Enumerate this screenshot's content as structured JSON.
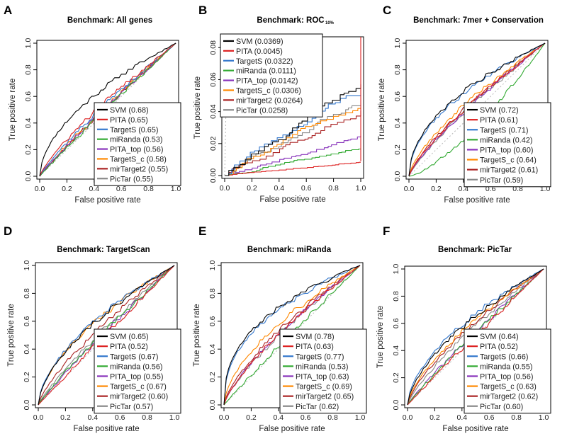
{
  "chart_data": [
    {
      "letter": "A",
      "type": "line",
      "title": "Benchmark: All genes",
      "xlabel": "False positive rate",
      "ylabel": "True positive rate",
      "xlim": [
        0,
        1
      ],
      "ylim": [
        0,
        1
      ],
      "xticks": [
        "0.0",
        "0.2",
        "0.4",
        "0.6",
        "0.8",
        "1.0"
      ],
      "yticks": [
        "0.0",
        "0.2",
        "0.4",
        "0.6",
        "0.8",
        "1.0"
      ],
      "series": [
        {
          "name": "SVM",
          "label": "SVM (0.68)",
          "color": "#000000",
          "shape": 0.55,
          "steps": false
        },
        {
          "name": "PITA",
          "label": "PITA (0.65)",
          "color": "#dd2222",
          "shape": 0.8,
          "steps": false
        },
        {
          "name": "TargetS",
          "label": "TargetS (0.65)",
          "color": "#3377cc",
          "shape": 0.85,
          "steps": false
        },
        {
          "name": "miRanda",
          "label": "miRanda (0.53)",
          "color": "#33aa33",
          "shape": 0.96,
          "steps": false
        },
        {
          "name": "PITA_top",
          "label": "PITA_top (0.56)",
          "color": "#8833bb",
          "shape": 0.92,
          "steps": false
        },
        {
          "name": "TargetS_c",
          "label": "TargetS_c (0.58)",
          "color": "#ff8800",
          "shape": 0.9,
          "steps": false
        },
        {
          "name": "mirTarget2",
          "label": "mirTarget2 (0.55)",
          "color": "#aa2222",
          "shape": 0.93,
          "steps": false
        },
        {
          "name": "PicTar",
          "label": "PicTar (0.55)",
          "color": "#888888",
          "shape": 0.94,
          "steps": false
        }
      ]
    },
    {
      "letter": "B",
      "type": "line",
      "title": "Benchmark: ROC",
      "title_sub": "10%",
      "xlabel": "False positive rate",
      "ylabel": "True positive rate",
      "xlim": [
        0,
        1
      ],
      "ylim": [
        0,
        0.085
      ],
      "xticks": [
        "0.0",
        "0.2",
        "0.4",
        "0.6",
        "0.8",
        "1.0"
      ],
      "yticks": [
        "0.00",
        "0.02",
        "0.04",
        "0.06",
        "0.08"
      ],
      "series": [
        {
          "name": "SVM",
          "label": "SVM (0.0369)",
          "color": "#000000",
          "end": 0.057,
          "steps": true
        },
        {
          "name": "PITA",
          "label": "PITA (0.0045)",
          "color": "#dd2222",
          "end": 0.009,
          "steps": true
        },
        {
          "name": "TargetS",
          "label": "TargetS (0.0322)",
          "color": "#3377cc",
          "end": 0.05,
          "steps": true
        },
        {
          "name": "miRanda",
          "label": "miRanda (0.0111)",
          "color": "#33aa33",
          "end": 0.017,
          "steps": true
        },
        {
          "name": "PITA_top",
          "label": "PITA_top (0.0142)",
          "color": "#8833bb",
          "end": 0.026,
          "steps": true
        },
        {
          "name": "TargetS_c",
          "label": "TargetS_c (0.0306)",
          "color": "#ff8800",
          "end": 0.047,
          "steps": true
        },
        {
          "name": "mirTarget2",
          "label": "mirTarget2 (0.0264)",
          "color": "#aa2222",
          "end": 0.042,
          "steps": true
        },
        {
          "name": "PicTar",
          "label": "PicTar (0.0258)",
          "color": "#888888",
          "end": 0.044,
          "steps": true
        }
      ]
    },
    {
      "letter": "C",
      "type": "line",
      "title": "Benchmark:  7mer + Conservation",
      "xlabel": "False positive rate",
      "ylabel": "True positive rate",
      "xlim": [
        0,
        1
      ],
      "ylim": [
        0,
        1
      ],
      "xticks": [
        "0.0",
        "0.2",
        "0.4",
        "0.6",
        "0.8",
        "1.0"
      ],
      "yticks": [
        "0.0",
        "0.2",
        "0.4",
        "0.6",
        "0.8",
        "1.0"
      ],
      "series": [
        {
          "name": "SVM",
          "label": "SVM (0.72)",
          "color": "#000000",
          "shape": 0.5,
          "steps": false
        },
        {
          "name": "PITA",
          "label": "PITA (0.61)",
          "color": "#dd2222",
          "shape": 0.78,
          "steps": false
        },
        {
          "name": "TargetS",
          "label": "TargetS (0.71)",
          "color": "#3377cc",
          "shape": 0.52,
          "steps": false
        },
        {
          "name": "miRanda",
          "label": "miRanda (0.42)",
          "color": "#33aa33",
          "shape": 1.4,
          "steps": false
        },
        {
          "name": "PITA_top",
          "label": "PITA_top (0.60)",
          "color": "#8833bb",
          "shape": 0.8,
          "steps": false
        },
        {
          "name": "TargetS_c",
          "label": "TargetS_c (0.64)",
          "color": "#ff8800",
          "shape": 0.7,
          "steps": false
        },
        {
          "name": "mirTarget2",
          "label": "mirTarget2 (0.61)",
          "color": "#aa2222",
          "shape": 0.76,
          "steps": false
        },
        {
          "name": "PicTar",
          "label": "PicTar (0.59)",
          "color": "#888888",
          "shape": 0.82,
          "steps": false
        }
      ]
    },
    {
      "letter": "D",
      "type": "line",
      "title": "Benchmark: TargetScan",
      "xlabel": "False positive rate",
      "ylabel": "True positive rate",
      "xlim": [
        0,
        1
      ],
      "ylim": [
        0,
        1
      ],
      "xticks": [
        "0.0",
        "0.2",
        "0.4",
        "0.6",
        "0.8",
        "1.0"
      ],
      "yticks": [
        "0.0",
        "0.2",
        "0.4",
        "0.6",
        "0.8",
        "1.0"
      ],
      "series": [
        {
          "name": "SVM",
          "label": "SVM (0.65)",
          "color": "#000000",
          "shape": 0.6,
          "steps": false
        },
        {
          "name": "PITA",
          "label": "PITA (0.52)",
          "color": "#dd2222",
          "shape": 0.98,
          "steps": false
        },
        {
          "name": "TargetS",
          "label": "TargetS (0.67)",
          "color": "#3377cc",
          "shape": 0.58,
          "steps": false
        },
        {
          "name": "miRanda",
          "label": "miRanda (0.56)",
          "color": "#33aa33",
          "shape": 0.9,
          "steps": false
        },
        {
          "name": "PITA_top",
          "label": "PITA_top (0.55)",
          "color": "#8833bb",
          "shape": 0.92,
          "steps": false
        },
        {
          "name": "TargetS_c",
          "label": "TargetS_c (0.67)",
          "color": "#ff8800",
          "shape": 0.6,
          "steps": false
        },
        {
          "name": "mirTarget2",
          "label": "mirTarget2 (0.60)",
          "color": "#aa2222",
          "shape": 0.75,
          "steps": false
        },
        {
          "name": "PicTar",
          "label": "PicTar (0.57)",
          "color": "#888888",
          "shape": 0.85,
          "steps": false
        }
      ]
    },
    {
      "letter": "E",
      "type": "line",
      "title": "Benchmark: miRanda",
      "xlabel": "False positive rate",
      "ylabel": "True positive rate",
      "xlim": [
        0,
        1
      ],
      "ylim": [
        0,
        1
      ],
      "xticks": [
        "0.0",
        "0.2",
        "0.4",
        "0.6",
        "0.8",
        "1.0"
      ],
      "yticks": [
        "0.0",
        "0.2",
        "0.4",
        "0.6",
        "0.8",
        "1.0"
      ],
      "series": [
        {
          "name": "SVM",
          "label": "SVM (0.78)",
          "color": "#000000",
          "shape": 0.4,
          "steps": false
        },
        {
          "name": "PITA",
          "label": "PITA (0.63)",
          "color": "#dd2222",
          "shape": 0.75,
          "steps": false
        },
        {
          "name": "TargetS",
          "label": "TargetS (0.77)",
          "color": "#3377cc",
          "shape": 0.42,
          "steps": false
        },
        {
          "name": "miRanda",
          "label": "miRanda (0.53)",
          "color": "#33aa33",
          "shape": 0.96,
          "steps": false
        },
        {
          "name": "PITA_top",
          "label": "PITA_top (0.63)",
          "color": "#8833bb",
          "shape": 0.75,
          "steps": false
        },
        {
          "name": "TargetS_c",
          "label": "TargetS_c (0.69)",
          "color": "#ff8800",
          "shape": 0.6,
          "steps": false
        },
        {
          "name": "mirTarget2",
          "label": "mirTarget2 (0.65)",
          "color": "#aa2222",
          "shape": 0.7,
          "steps": false
        },
        {
          "name": "PicTar",
          "label": "PicTar (0.62)",
          "color": "#888888",
          "shape": 0.77,
          "steps": false
        }
      ]
    },
    {
      "letter": "F",
      "type": "line",
      "title": "Benchmark: PicTar",
      "xlabel": "False positive rate",
      "ylabel": "True positive rate",
      "xlim": [
        0,
        1
      ],
      "ylim": [
        0,
        1
      ],
      "xticks": [
        "0.0",
        "0.2",
        "0.4",
        "0.6",
        "0.8",
        "1.0"
      ],
      "yticks": [
        "0.0",
        "0.2",
        "0.4",
        "0.6",
        "0.8",
        "1.0"
      ],
      "series": [
        {
          "name": "SVM",
          "label": "SVM (0.64)",
          "color": "#000000",
          "shape": 0.62,
          "steps": false
        },
        {
          "name": "PITA",
          "label": "PITA (0.52)",
          "color": "#dd2222",
          "shape": 0.98,
          "steps": false
        },
        {
          "name": "TargetS",
          "label": "TargetS (0.66)",
          "color": "#3377cc",
          "shape": 0.58,
          "steps": false
        },
        {
          "name": "miRanda",
          "label": "miRanda (0.55)",
          "color": "#33aa33",
          "shape": 0.92,
          "steps": false
        },
        {
          "name": "PITA_top",
          "label": "PITA_top (0.56)",
          "color": "#8833bb",
          "shape": 0.9,
          "steps": false
        },
        {
          "name": "TargetS_c",
          "label": "TargetS_c (0.63)",
          "color": "#ff8800",
          "shape": 0.68,
          "steps": false
        },
        {
          "name": "mirTarget2",
          "label": "mirTarget2 (0.62)",
          "color": "#aa2222",
          "shape": 0.72,
          "steps": false
        },
        {
          "name": "PicTar",
          "label": "PicTar (0.60)",
          "color": "#888888",
          "shape": 0.78,
          "steps": false
        }
      ]
    }
  ]
}
